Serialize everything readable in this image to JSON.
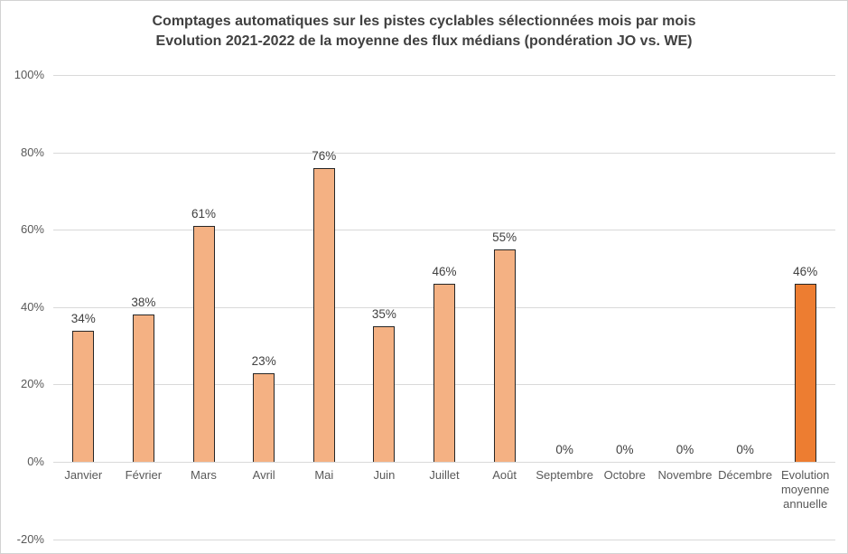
{
  "chart": {
    "title_line1": "Comptages automatiques sur les pistes cyclables sélectionnées mois par mois",
    "title_line2": "Evolution 2021-2022 de la moyenne des flux médians (pondération JO vs. WE)"
  },
  "colors": {
    "background": "#FFFFFF",
    "bar_fill": "#F4B183",
    "bar_border": "#262626",
    "highlight_bar_fill": "#ED7D31",
    "gridline": "#D9D9D9",
    "title_text": "#404040",
    "axis_text": "#595959",
    "value_label_text": "#404040"
  },
  "chart_data": {
    "type": "bar",
    "title": "Comptages automatiques sur les pistes cyclables sélectionnées mois par mois — Evolution 2021-2022 de la moyenne des flux médians (pondération JO vs. WE)",
    "categories": [
      "Janvier",
      "Février",
      "Mars",
      "Avril",
      "Mai",
      "Juin",
      "Juillet",
      "Août",
      "Septembre",
      "Octobre",
      "Novembre",
      "Décembre",
      "Evolution moyenne annuelle"
    ],
    "values": [
      34,
      38,
      61,
      23,
      76,
      35,
      46,
      55,
      0,
      0,
      0,
      0,
      46
    ],
    "value_labels": [
      "34%",
      "38%",
      "61%",
      "23%",
      "76%",
      "35%",
      "46%",
      "55%",
      "0%",
      "0%",
      "0%",
      "0%",
      "46%"
    ],
    "highlight_index": 12,
    "xlabel": "",
    "ylabel": "",
    "ylim": [
      -20,
      100
    ],
    "ytick_labels": [
      "100%",
      "80%",
      "60%",
      "40%",
      "20%",
      "0%",
      "-20%"
    ],
    "grid": true,
    "legend": false
  }
}
